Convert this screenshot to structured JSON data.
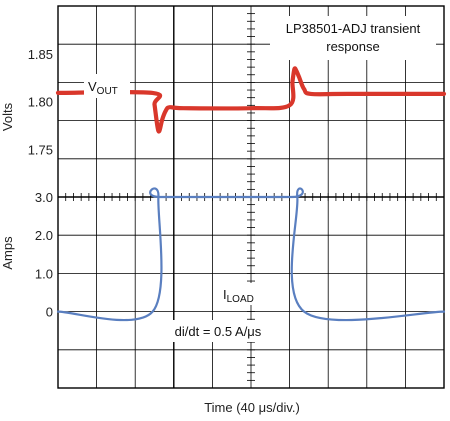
{
  "chart_data": {
    "type": "line",
    "title": "LP38501-ADJ transient response",
    "xlabel": "Time (40 μs/div.)",
    "x_divisions": 10,
    "x_range_us": [
      0,
      400
    ],
    "grid": true,
    "panels": [
      {
        "name": "voltage",
        "ylabel": "Volts",
        "ylim": [
          1.7,
          1.9
        ],
        "yticks": [
          "1.85",
          "1.80",
          "1.75"
        ],
        "ytick_values": [
          1.85,
          1.8,
          1.75
        ],
        "series": [
          {
            "name": "VOUT",
            "color": "#d9372b",
            "x": [
              0,
              98,
              100,
              103,
              105,
              108,
              112,
              116,
              130,
              200,
              240,
              243,
              245,
              247,
              250,
              255,
              262,
              300,
              400
            ],
            "y": [
              1.809,
              1.809,
              1.797,
              1.774,
              1.769,
              1.781,
              1.791,
              1.794,
              1.793,
              1.793,
              1.796,
              1.821,
              1.834,
              1.832,
              1.825,
              1.813,
              1.808,
              1.808,
              1.808
            ]
          }
        ]
      },
      {
        "name": "current",
        "ylabel": "Amps",
        "ylim": [
          -2.0,
          3.0
        ],
        "yticks": [
          "3.0",
          "2.0",
          "1.0",
          "0"
        ],
        "ytick_values": [
          3.0,
          2.0,
          1.0,
          0
        ],
        "series": [
          {
            "name": "ILOAD",
            "color": "#5a7fc0",
            "x": [
              0,
              98,
              104,
              106,
              242,
              248,
              255,
              400
            ],
            "y": [
              0,
              0,
              3.0,
              3.0,
              3.0,
              3.0,
              0,
              0
            ]
          }
        ]
      }
    ],
    "annotations": {
      "vout_main": "V",
      "vout_sub": "OUT",
      "iload_main": "I",
      "iload_sub": "LOAD",
      "slew": "di/dt = 0.5 A/μs"
    }
  },
  "colors": {
    "grid": "#000000",
    "vout": "#d9372b",
    "iload": "#5a7fc0"
  }
}
